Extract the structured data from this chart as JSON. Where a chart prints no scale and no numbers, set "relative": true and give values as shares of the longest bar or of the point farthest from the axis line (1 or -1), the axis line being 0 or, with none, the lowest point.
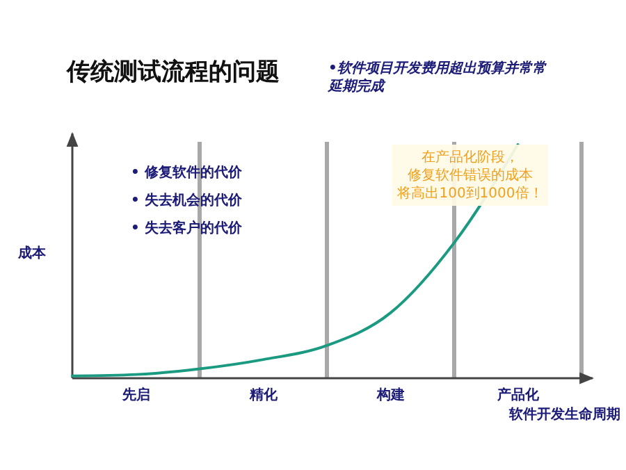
{
  "chart_data": {
    "type": "line",
    "title": "传统测试流程的问题",
    "subtitle": "•软件项目开发费用超出预算并常常延期完成",
    "xlabel": "软件开发生命周期",
    "ylabel": "成本",
    "relative": true,
    "categories": [
      null,
      "先启",
      null,
      "精化",
      null,
      "构建",
      null,
      "产品化",
      null
    ],
    "series": [
      {
        "color": "#1a9a80",
        "values": [
          0.01,
          0.016,
          0.04,
          0.08,
          0.14,
          0.28,
          0.58,
          1,
          null
        ]
      }
    ],
    "annotations": [
      "在产品化阶段，修复软件错误的成本将高出100到1000倍！",
      "• 修复软件的代价",
      "• 失去机会的代价",
      "• 失去客户的代价"
    ],
    "grid": "x",
    "marker": "none",
    "line_style": "solid"
  }
}
